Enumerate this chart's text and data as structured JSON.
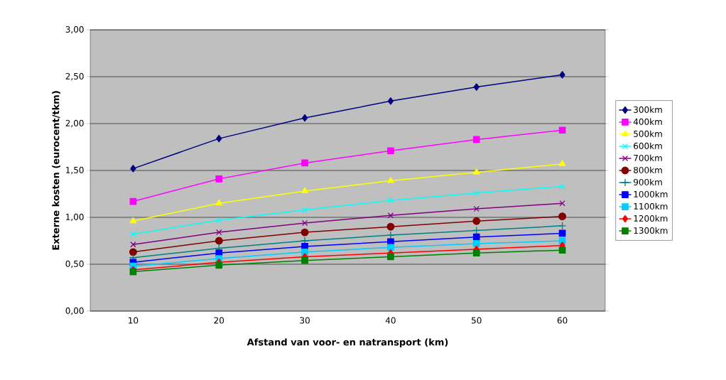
{
  "chart_data": {
    "type": "line",
    "xlabel": "Afstand van voor- en natransport (km)",
    "ylabel": "Externe kosten (eurocent/tkm)",
    "categories": [
      "10",
      "20",
      "30",
      "40",
      "50",
      "60"
    ],
    "ylim": [
      0,
      3
    ],
    "yticks": [
      {
        "value": 0,
        "label": "0,00"
      },
      {
        "value": 0.5,
        "label": "0,50"
      },
      {
        "value": 1,
        "label": "1,00"
      },
      {
        "value": 1.5,
        "label": "1,50"
      },
      {
        "value": 2,
        "label": "2,00"
      },
      {
        "value": 2.5,
        "label": "2,50"
      },
      {
        "value": 3,
        "label": "3,00"
      }
    ],
    "grid": "y",
    "legend": "right",
    "series": [
      {
        "name": "300km",
        "color": "#000080",
        "marker": "diamond",
        "values": [
          1.52,
          1.84,
          2.06,
          2.24,
          2.39,
          2.52
        ]
      },
      {
        "name": "400km",
        "color": "#ff00ff",
        "marker": "square",
        "values": [
          1.17,
          1.41,
          1.58,
          1.71,
          1.83,
          1.93
        ]
      },
      {
        "name": "500km",
        "color": "#ffff00",
        "marker": "triangle",
        "values": [
          0.96,
          1.15,
          1.28,
          1.39,
          1.48,
          1.57
        ]
      },
      {
        "name": "600km",
        "color": "#00ffff",
        "marker": "cross",
        "values": [
          0.82,
          0.97,
          1.08,
          1.18,
          1.26,
          1.33
        ]
      },
      {
        "name": "700km",
        "color": "#800080",
        "marker": "cross",
        "values": [
          0.71,
          0.84,
          0.94,
          1.02,
          1.09,
          1.15
        ]
      },
      {
        "name": "800km",
        "color": "#800000",
        "marker": "circle",
        "values": [
          0.63,
          0.75,
          0.84,
          0.9,
          0.96,
          1.01
        ]
      },
      {
        "name": "900km",
        "color": "#008080",
        "marker": "plus",
        "values": [
          0.57,
          0.67,
          0.75,
          0.81,
          0.86,
          0.91
        ]
      },
      {
        "name": "1000km",
        "color": "#0000ff",
        "marker": "square",
        "values": [
          0.52,
          0.62,
          0.69,
          0.74,
          0.79,
          0.83
        ]
      },
      {
        "name": "1100km",
        "color": "#00ccff",
        "marker": "square",
        "values": [
          0.48,
          0.56,
          0.63,
          0.68,
          0.72,
          0.75
        ]
      },
      {
        "name": "1200km",
        "color": "#ff0000",
        "marker": "diamond",
        "values": [
          0.44,
          0.52,
          0.58,
          0.62,
          0.66,
          0.7
        ]
      },
      {
        "name": "1300km",
        "color": "#008000",
        "marker": "square",
        "values": [
          0.42,
          0.49,
          0.54,
          0.58,
          0.62,
          0.65
        ]
      }
    ]
  }
}
